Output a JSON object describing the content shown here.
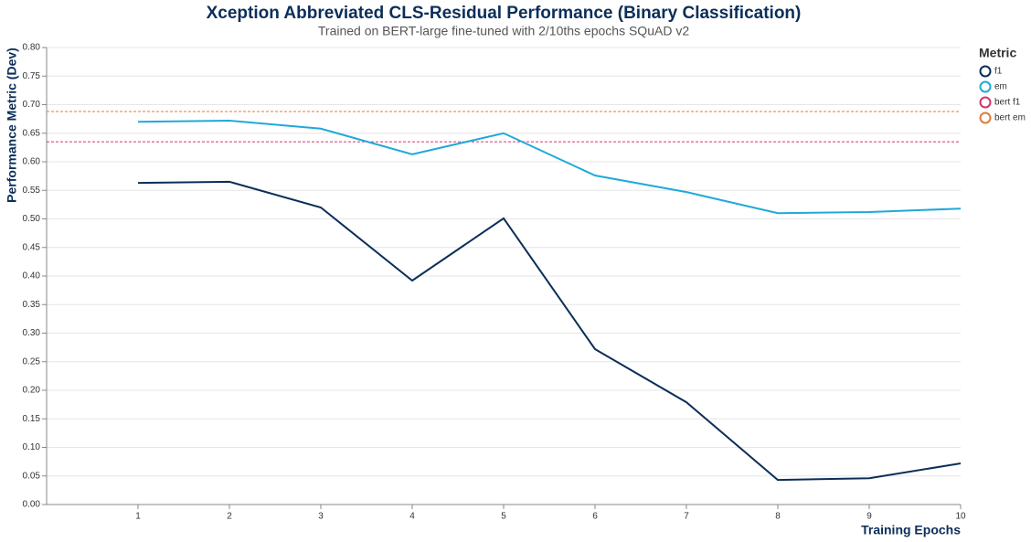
{
  "chart_data": {
    "type": "line",
    "title": "Xception Abbreviated CLS-Residual Performance (Binary Classification)",
    "subtitle": "Trained on BERT-large fine-tuned with 2/10ths epochs SQuAD v2",
    "x_label": "Training Epochs",
    "y_label": "Performance Metric (Dev)",
    "legend_title": "Metric",
    "legend": "right",
    "grid": true,
    "x": [
      1,
      2,
      3,
      4,
      5,
      6,
      7,
      8,
      9,
      10
    ],
    "series": [
      {
        "name": "f1",
        "color": "#0b2e59",
        "values": [
          0.563,
          0.565,
          0.52,
          0.392,
          0.501,
          0.272,
          0.179,
          0.043,
          0.046,
          0.072
        ]
      },
      {
        "name": "em",
        "color": "#1fa9d9",
        "values": [
          0.67,
          0.672,
          0.658,
          0.613,
          0.65,
          0.576,
          0.547,
          0.51,
          0.512,
          0.518
        ]
      }
    ],
    "hlines": [
      {
        "name": "bert f1",
        "color": "#d6336c",
        "value": 0.635
      },
      {
        "name": "bert em",
        "color": "#e07b39",
        "value": 0.688
      }
    ],
    "xlim": [
      0,
      10
    ],
    "xticks": [
      1,
      2,
      3,
      4,
      5,
      6,
      7,
      8,
      9,
      10
    ],
    "ylim": [
      0,
      0.8
    ],
    "yticks": [
      {
        "value": 0,
        "label": "0.00"
      },
      {
        "value": 0.05,
        "label": "0.05"
      },
      {
        "value": 0.1,
        "label": "0.10"
      },
      {
        "value": 0.15,
        "label": "0.15"
      },
      {
        "value": 0.2,
        "label": "0.20"
      },
      {
        "value": 0.25,
        "label": "0.25"
      },
      {
        "value": 0.3,
        "label": "0.30"
      },
      {
        "value": 0.35,
        "label": "0.35"
      },
      {
        "value": 0.4,
        "label": "0.40"
      },
      {
        "value": 0.45,
        "label": "0.45"
      },
      {
        "value": 0.5,
        "label": "0.50"
      },
      {
        "value": 0.55,
        "label": "0.55"
      },
      {
        "value": 0.6,
        "label": "0.60"
      },
      {
        "value": 0.65,
        "label": "0.65"
      },
      {
        "value": 0.7,
        "label": "0.70"
      },
      {
        "value": 0.75,
        "label": "0.75"
      },
      {
        "value": 0.8,
        "label": "0.80"
      }
    ]
  }
}
